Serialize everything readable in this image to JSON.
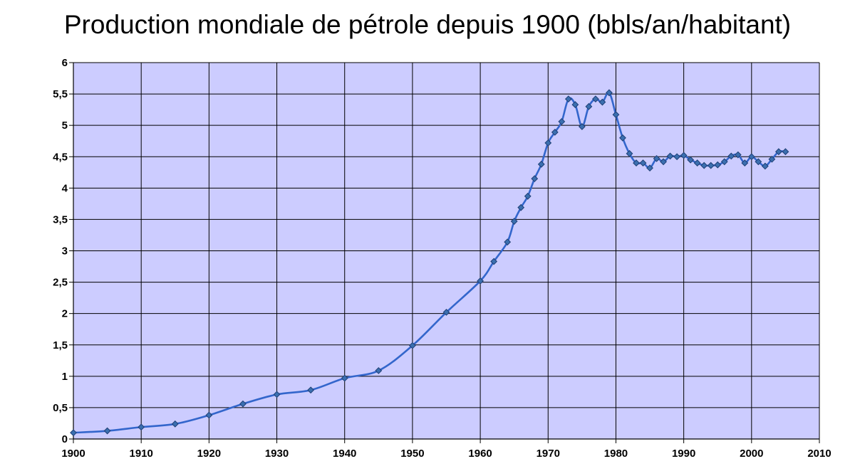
{
  "chart_data": {
    "type": "line",
    "title": "Production mondiale de pétrole depuis 1900 (bbls/an/habitant)",
    "xlabel": "",
    "ylabel": "",
    "xlim": [
      1900,
      2010
    ],
    "ylim": [
      0,
      6
    ],
    "x_ticks": [
      1900,
      1910,
      1920,
      1930,
      1940,
      1950,
      1960,
      1970,
      1980,
      1990,
      2000,
      2010
    ],
    "y_ticks": [
      0,
      0.5,
      1,
      1.5,
      2,
      2.5,
      3,
      3.5,
      4,
      4.5,
      5,
      5.5,
      6
    ],
    "y_tick_labels": [
      "0",
      "0,5",
      "1",
      "1,5",
      "2",
      "2,5",
      "3",
      "3,5",
      "4",
      "4,5",
      "5",
      "5,5",
      "6"
    ],
    "x_tick_labels": [
      "1900",
      "1910",
      "1920",
      "1930",
      "1940",
      "1950",
      "1960",
      "1970",
      "1980",
      "1990",
      "2000",
      "2010"
    ],
    "grid": true,
    "plot_background": "#ccccff",
    "line_color": "#3366cc",
    "marker_color": "#3b6fb0",
    "series": [
      {
        "x": [
          1900,
          1905,
          1910,
          1915,
          1920,
          1925,
          1930,
          1935,
          1940,
          1945,
          1950,
          1955,
          1960,
          1962,
          1964,
          1965,
          1966,
          1967,
          1968,
          1969,
          1970,
          1971,
          1972,
          1973,
          1974,
          1975,
          1976,
          1977,
          1978,
          1979,
          1980,
          1981,
          1982,
          1983,
          1984,
          1985,
          1986,
          1987,
          1988,
          1989,
          1990,
          1991,
          1992,
          1993,
          1994,
          1995,
          1996,
          1997,
          1998,
          1999,
          2000,
          2001,
          2002,
          2003,
          2004,
          2005
        ],
        "values": [
          0.1,
          0.13,
          0.19,
          0.24,
          0.38,
          0.56,
          0.71,
          0.78,
          0.97,
          1.09,
          1.49,
          2.02,
          2.52,
          2.83,
          3.14,
          3.47,
          3.69,
          3.87,
          4.15,
          4.38,
          4.72,
          4.89,
          5.06,
          5.42,
          5.33,
          4.98,
          5.3,
          5.42,
          5.37,
          5.52,
          5.17,
          4.8,
          4.55,
          4.4,
          4.4,
          4.32,
          4.47,
          4.42,
          4.51,
          4.5,
          4.52,
          4.45,
          4.4,
          4.36,
          4.36,
          4.37,
          4.42,
          4.51,
          4.53,
          4.4,
          4.5,
          4.42,
          4.35,
          4.46,
          4.58,
          4.58
        ]
      }
    ]
  }
}
